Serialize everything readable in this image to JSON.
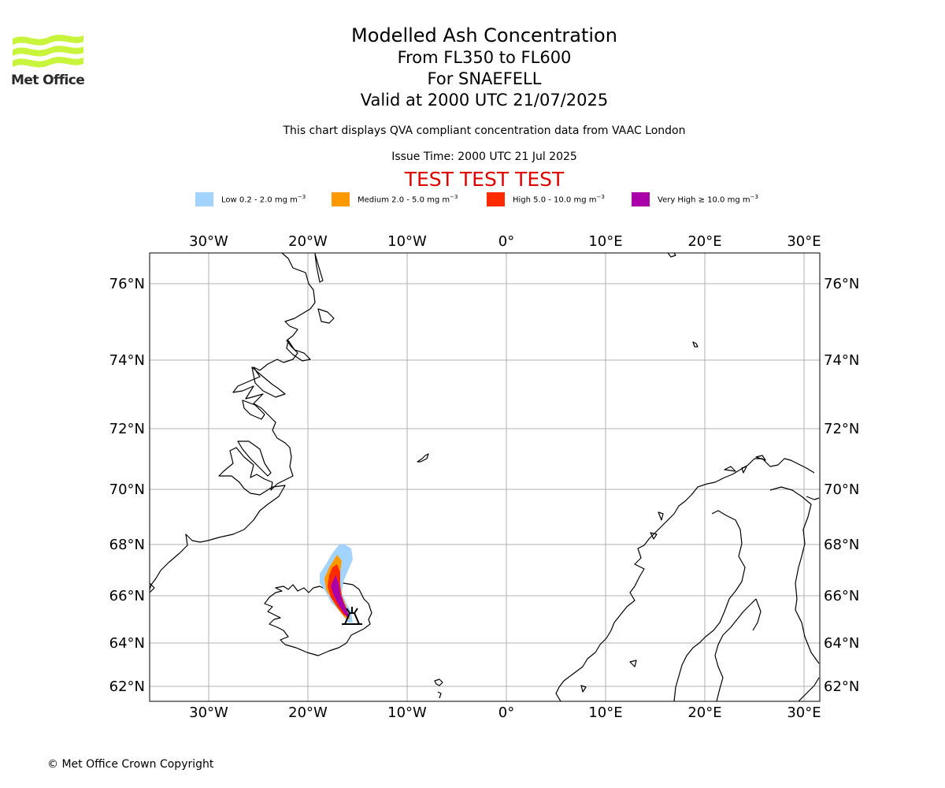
{
  "logo": {
    "text": "Met Office",
    "color": "#c8f53c"
  },
  "title": {
    "line1": "Modelled Ash Concentration",
    "line2": "From FL350 to FL600",
    "line3": "For SNAEFELL",
    "line4": "Valid at 2000 UTC 21/07/2025"
  },
  "subtitle": "This chart displays QVA compliant concentration data from VAAC London",
  "issue_time": "Issue Time: 2000 UTC 21 Jul 2025",
  "test_banner": "TEST TEST TEST",
  "legend": [
    {
      "label": "Low 0.2 - 2.0 mg m",
      "exp": "−3",
      "color": "#a3d4ff"
    },
    {
      "label": "Medium 2.0 - 5.0 mg m",
      "exp": "−3",
      "color": "#ff9900"
    },
    {
      "label": "High 5.0 - 10.0 mg m",
      "exp": "−3",
      "color": "#ff2b00"
    },
    {
      "label": "Very High  ≥  10.0 mg m",
      "exp": "−3",
      "color": "#aa00aa"
    }
  ],
  "map": {
    "lon_labels": [
      "30°W",
      "20°W",
      "10°W",
      "0°",
      "10°E",
      "20°E",
      "30°E"
    ],
    "lat_labels": [
      "76°N",
      "74°N",
      "72°N",
      "70°N",
      "68°N",
      "66°N",
      "64°N",
      "62°N"
    ],
    "volcano": "Snaefell"
  },
  "copyright": "© Met Office Crown Copyright"
}
